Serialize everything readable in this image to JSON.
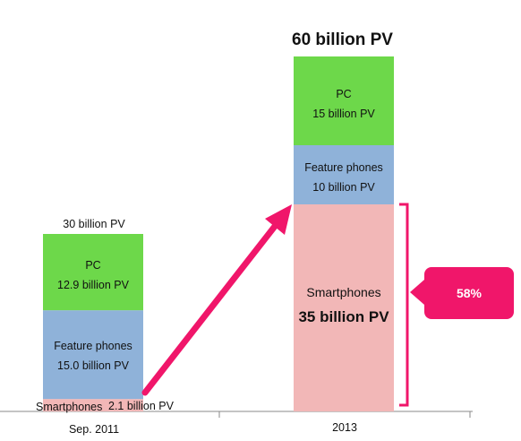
{
  "chart_data": {
    "type": "bar",
    "stacked": true,
    "categories": [
      "Sep. 2011",
      "2013"
    ],
    "totals": [
      "30 billion PV",
      "60 billion PV"
    ],
    "series": [
      {
        "name": "Smartphones",
        "values": [
          2.1,
          35
        ],
        "color": "#f2b7b7",
        "labels": [
          "2.1 billion PV",
          "35 billion PV"
        ]
      },
      {
        "name": "Feature phones",
        "values": [
          15.0,
          10
        ],
        "color": "#8fb2d9",
        "labels": [
          "15.0 billion PV",
          "10 billion PV"
        ]
      },
      {
        "name": "PC",
        "values": [
          12.9,
          15
        ],
        "color": "#6dd84a",
        "labels": [
          "12.9 billion PV",
          "15 billion PV"
        ]
      }
    ],
    "annotation": {
      "text": "58%",
      "color": "#f0166a"
    },
    "arrow_color": "#f0166a"
  }
}
